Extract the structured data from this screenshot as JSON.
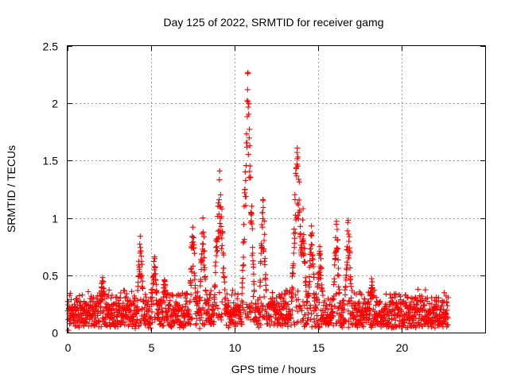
{
  "chart_data": {
    "type": "scatter",
    "title": "Day 125 of 2022, SRMTID for receiver gamg",
    "xlabel": "GPS time / hours",
    "ylabel": "SRMTID / TECUs",
    "xlim": [
      0,
      25
    ],
    "ylim": [
      0,
      2.5
    ],
    "xticks": [
      0,
      5,
      10,
      15,
      20
    ],
    "xtick_labels": [
      "0",
      "5",
      "10",
      "15",
      "20"
    ],
    "yticks": [
      0,
      0.5,
      1,
      1.5,
      2,
      2.5
    ],
    "ytick_labels": [
      "0",
      "0.5",
      "1",
      "1.5",
      "2",
      "2.5"
    ],
    "grid": true,
    "marker": "+",
    "marker_color": "#ff0000",
    "series": [
      {
        "name": "SRMTID",
        "peaks": [
          {
            "x": 0.05,
            "y": 0.02
          },
          {
            "x": 0.3,
            "y": 0.22
          },
          {
            "x": 1.0,
            "y": 0.2
          },
          {
            "x": 2.1,
            "y": 0.48
          },
          {
            "x": 2.6,
            "y": 0.3
          },
          {
            "x": 4.35,
            "y": 0.84
          },
          {
            "x": 5.2,
            "y": 0.66
          },
          {
            "x": 5.8,
            "y": 0.46
          },
          {
            "x": 7.5,
            "y": 0.92
          },
          {
            "x": 8.1,
            "y": 1.0
          },
          {
            "x": 9.1,
            "y": 1.41
          },
          {
            "x": 10.8,
            "y": 2.27
          },
          {
            "x": 11.7,
            "y": 1.16
          },
          {
            "x": 13.75,
            "y": 1.61
          },
          {
            "x": 14.1,
            "y": 1.08
          },
          {
            "x": 14.6,
            "y": 0.93
          },
          {
            "x": 15.1,
            "y": 0.75
          },
          {
            "x": 16.1,
            "y": 0.97
          },
          {
            "x": 16.8,
            "y": 0.98
          },
          {
            "x": 18.2,
            "y": 0.47
          },
          {
            "x": 19.6,
            "y": 0.31
          },
          {
            "x": 22.7,
            "y": 0.27
          }
        ],
        "x_range": [
          0.0,
          22.8
        ],
        "baseline_range": [
          0.05,
          0.3
        ]
      }
    ]
  }
}
